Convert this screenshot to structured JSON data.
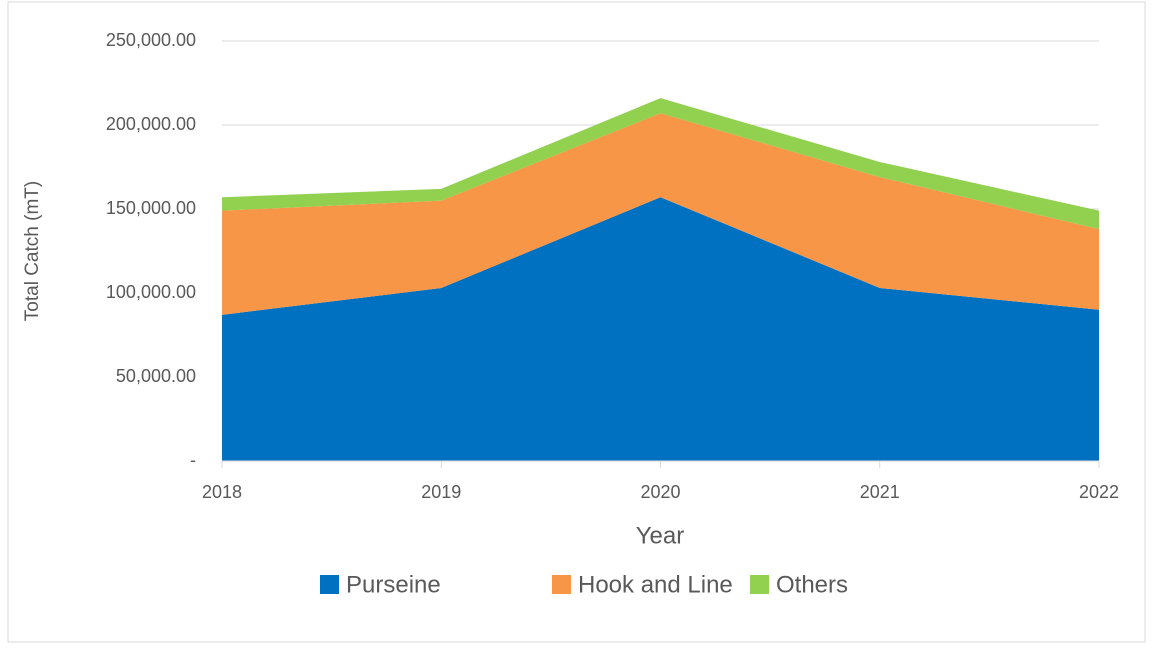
{
  "chart_data": {
    "type": "stacked_area",
    "x_label": "Year",
    "y_label": "Total Catch  (mT)",
    "categories": [
      "2018",
      "2019",
      "2020",
      "2021",
      "2022"
    ],
    "series": [
      {
        "name": "Purseine",
        "color": "#0070c0",
        "values": [
          87000,
          103000,
          157000,
          103000,
          90000
        ]
      },
      {
        "name": "Hook and Line",
        "color": "#f79646",
        "values": [
          62000,
          52000,
          50000,
          66000,
          48000
        ]
      },
      {
        "name": "Others",
        "color": "#92d050",
        "values": [
          8000,
          7000,
          9000,
          9000,
          11000
        ]
      }
    ],
    "ylim": [
      0,
      250000
    ],
    "yticks": [
      {
        "value": 0,
        "label": "-"
      },
      {
        "value": 50000,
        "label": "50,000.00"
      },
      {
        "value": 100000,
        "label": "100,000.00"
      },
      {
        "value": 150000,
        "label": "150,000.00"
      },
      {
        "value": 200000,
        "label": "200,000.00"
      },
      {
        "value": 250000,
        "label": "250,000.00"
      }
    ],
    "grid": true,
    "legend": "bottom"
  }
}
